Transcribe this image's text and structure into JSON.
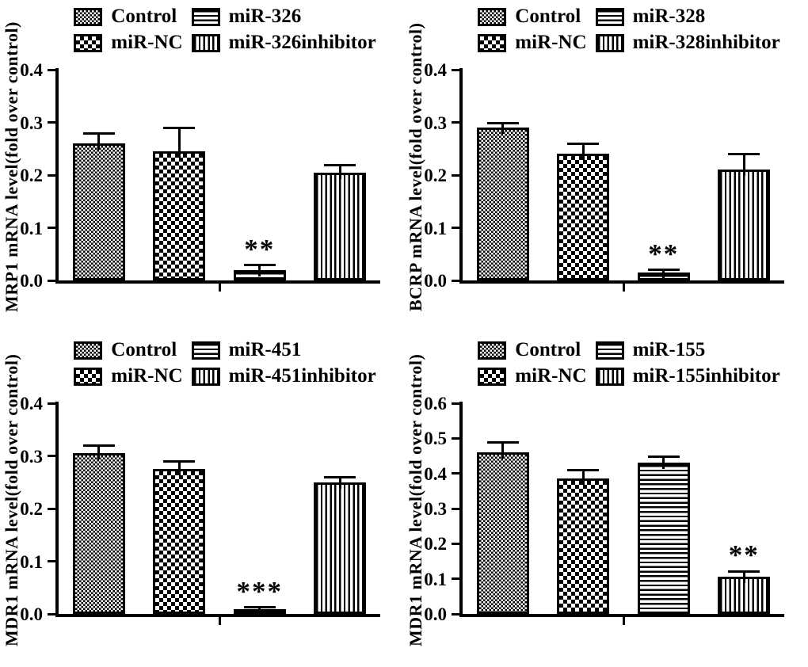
{
  "figure": {
    "type": "multi-panel-bar-figure",
    "panels_grid": "2x2",
    "background_color": "#ffffff",
    "ink_color": "#000000"
  },
  "chart_data": [
    {
      "type": "bar",
      "panel": "top-left",
      "title": "",
      "xlabel": "",
      "ylabel": "MRP1 mRNA level(fold over control)",
      "ylim": [
        0,
        0.4
      ],
      "yticks": [
        0,
        0.1,
        0.2,
        0.3,
        0.4
      ],
      "ytick_labels": [
        "0.0",
        "0.1",
        "0.2",
        "0.3",
        "0.4"
      ],
      "grid": false,
      "legend_position": "top",
      "categories": [
        "Control",
        "miR-NC",
        "miR-326",
        "miR-326inhibitor"
      ],
      "values": [
        0.26,
        0.245,
        0.02,
        0.205
      ],
      "errors": [
        0.02,
        0.045,
        0.01,
        0.015
      ],
      "bar_patterns": [
        "fine-checker",
        "coarse-checker",
        "h-stripes",
        "v-stripes"
      ],
      "significance": [
        "",
        "",
        "**",
        ""
      ],
      "legend": [
        {
          "label": "Control",
          "pattern": "fine-checker"
        },
        {
          "label": "miR-326",
          "pattern": "h-stripes"
        },
        {
          "label": "miR-NC",
          "pattern": "coarse-checker"
        },
        {
          "label": "miR-326inhibitor",
          "pattern": "v-stripes"
        }
      ]
    },
    {
      "type": "bar",
      "panel": "top-right",
      "title": "",
      "xlabel": "",
      "ylabel": "BCRP mRNA level(fold over control)",
      "ylim": [
        0,
        0.4
      ],
      "yticks": [
        0,
        0.1,
        0.2,
        0.3,
        0.4
      ],
      "ytick_labels": [
        "0.0",
        "0.1",
        "0.2",
        "0.3",
        "0.4"
      ],
      "grid": false,
      "legend_position": "top",
      "categories": [
        "Control",
        "miR-NC",
        "miR-328",
        "miR-328inhibitor"
      ],
      "values": [
        0.29,
        0.24,
        0.015,
        0.21
      ],
      "errors": [
        0.01,
        0.02,
        0.006,
        0.03
      ],
      "bar_patterns": [
        "fine-checker",
        "coarse-checker",
        "h-stripes",
        "v-stripes"
      ],
      "significance": [
        "",
        "",
        "**",
        ""
      ],
      "legend": [
        {
          "label": "Control",
          "pattern": "fine-checker"
        },
        {
          "label": "miR-328",
          "pattern": "h-stripes"
        },
        {
          "label": "miR-NC",
          "pattern": "coarse-checker"
        },
        {
          "label": "miR-328inhibitor",
          "pattern": "v-stripes"
        }
      ]
    },
    {
      "type": "bar",
      "panel": "bottom-left",
      "title": "",
      "xlabel": "",
      "ylabel": "MDR1 mRNA level(fold over control)",
      "ylim": [
        0,
        0.4
      ],
      "yticks": [
        0,
        0.1,
        0.2,
        0.3,
        0.4
      ],
      "ytick_labels": [
        "0.0",
        "0.1",
        "0.2",
        "0.3",
        "0.4"
      ],
      "grid": false,
      "legend_position": "top",
      "categories": [
        "Control",
        "miR-NC",
        "miR-451",
        "miR-451inhibitor"
      ],
      "values": [
        0.305,
        0.275,
        0.008,
        0.25
      ],
      "errors": [
        0.015,
        0.015,
        0.005,
        0.01
      ],
      "bar_patterns": [
        "fine-checker",
        "coarse-checker",
        "h-stripes",
        "v-stripes"
      ],
      "significance": [
        "",
        "",
        "***",
        ""
      ],
      "legend": [
        {
          "label": "Control",
          "pattern": "fine-checker"
        },
        {
          "label": "miR-451",
          "pattern": "h-stripes"
        },
        {
          "label": "miR-NC",
          "pattern": "coarse-checker"
        },
        {
          "label": "miR-451inhibitor",
          "pattern": "v-stripes"
        }
      ]
    },
    {
      "type": "bar",
      "panel": "bottom-right",
      "title": "",
      "xlabel": "",
      "ylabel": "MDR1 mRNA level(fold over control)",
      "ylim": [
        0,
        0.6
      ],
      "yticks": [
        0,
        0.1,
        0.2,
        0.3,
        0.4,
        0.5,
        0.6
      ],
      "ytick_labels": [
        "0.0",
        "0.1",
        "0.2",
        "0.3",
        "0.4",
        "0.5",
        "0.6"
      ],
      "grid": false,
      "legend_position": "top",
      "categories": [
        "Control",
        "miR-NC",
        "miR-155",
        "miR-155inhibitor"
      ],
      "values": [
        0.46,
        0.385,
        0.43,
        0.105
      ],
      "errors": [
        0.03,
        0.025,
        0.02,
        0.017
      ],
      "bar_patterns": [
        "fine-checker",
        "coarse-checker",
        "h-stripes",
        "v-stripes"
      ],
      "significance": [
        "",
        "",
        "",
        "**"
      ],
      "legend": [
        {
          "label": "Control",
          "pattern": "fine-checker"
        },
        {
          "label": "miR-155",
          "pattern": "h-stripes"
        },
        {
          "label": "miR-NC",
          "pattern": "coarse-checker"
        },
        {
          "label": "miR-155inhibitor",
          "pattern": "v-stripes"
        }
      ]
    }
  ]
}
